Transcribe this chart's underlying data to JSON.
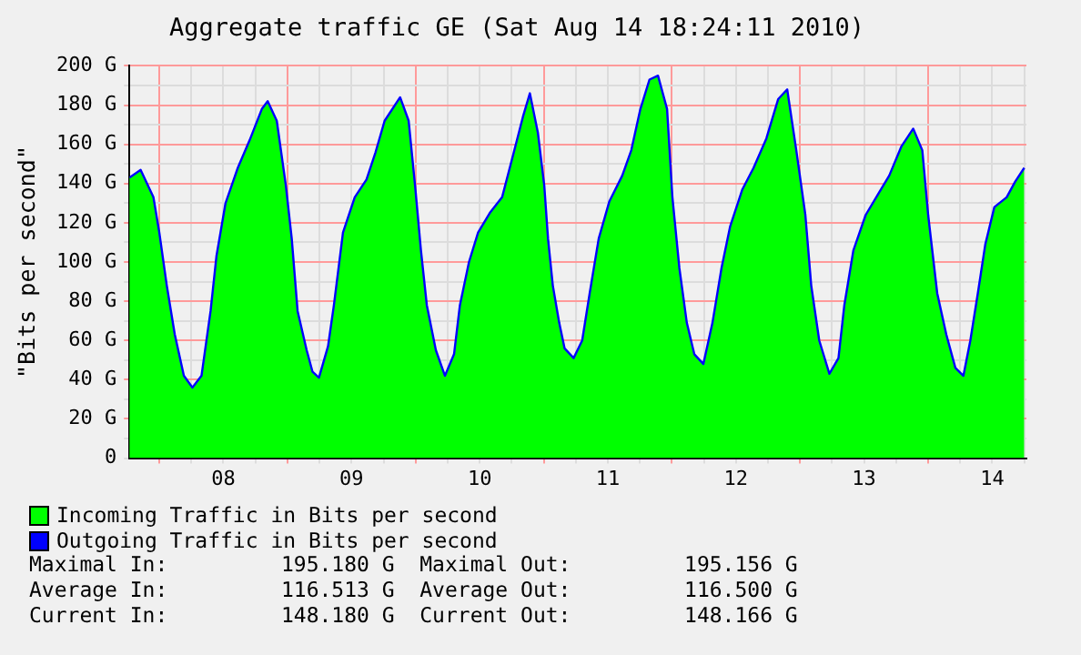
{
  "chart_data": {
    "type": "area",
    "title": "Aggregate traffic GE (Sat Aug 14 18:24:11 2010)",
    "ylabel": "\"Bits per second\"",
    "x": [
      "2010-08-07T18:24",
      "2010-08-07T20:30",
      "2010-08-07T22:54",
      "2010-08-08T00:00",
      "2010-08-08T01:24",
      "2010-08-08T02:54",
      "2010-08-08T04:36",
      "2010-08-08T06:12",
      "2010-08-08T07:54",
      "2010-08-08T09:36",
      "2010-08-08T10:42",
      "2010-08-08T12:24",
      "2010-08-08T14:42",
      "2010-08-08T16:54",
      "2010-08-08T19:12",
      "2010-08-08T20:18",
      "2010-08-08T22:00",
      "2010-08-08T23:42",
      "2010-08-09T00:48",
      "2010-08-09T01:54",
      "2010-08-09T03:36",
      "2010-08-09T04:42",
      "2010-08-09T05:54",
      "2010-08-09T07:36",
      "2010-08-09T08:42",
      "2010-08-09T10:24",
      "2010-08-09T12:36",
      "2010-08-09T14:48",
      "2010-08-09T16:30",
      "2010-08-09T18:12",
      "2010-08-09T21:06",
      "2010-08-09T22:42",
      "2010-08-09T23:54",
      "2010-08-10T01:00",
      "2010-08-10T02:06",
      "2010-08-10T03:48",
      "2010-08-10T05:30",
      "2010-08-10T07:12",
      "2010-08-10T08:18",
      "2010-08-10T10:00",
      "2010-08-10T11:42",
      "2010-08-10T13:54",
      "2010-08-10T16:12",
      "2010-08-10T18:24",
      "2010-08-10T20:06",
      "2010-08-10T21:24",
      "2010-08-10T22:54",
      "2010-08-11T00:06",
      "2010-08-11T00:48",
      "2010-08-11T01:42",
      "2010-08-11T02:54",
      "2010-08-11T03:54",
      "2010-08-11T05:36",
      "2010-08-11T07:12",
      "2010-08-11T08:36",
      "2010-08-11T10:18",
      "2010-08-11T12:18",
      "2010-08-11T14:42",
      "2010-08-11T16:24",
      "2010-08-11T18:06",
      "2010-08-11T19:48",
      "2010-08-11T21:24",
      "2010-08-11T23:06",
      "2010-08-12T00:06",
      "2010-08-12T01:24",
      "2010-08-12T02:48",
      "2010-08-12T04:12",
      "2010-08-12T05:54",
      "2010-08-12T07:36",
      "2010-08-12T09:18",
      "2010-08-12T10:54",
      "2010-08-12T13:12",
      "2010-08-12T15:18",
      "2010-08-12T17:42",
      "2010-08-12T19:54",
      "2010-08-12T21:36",
      "2010-08-12T23:18",
      "2010-08-13T01:00",
      "2010-08-13T02:06",
      "2010-08-13T03:36",
      "2010-08-13T05:30",
      "2010-08-13T07:12",
      "2010-08-13T08:18",
      "2010-08-13T10:00",
      "2010-08-13T12:18",
      "2010-08-13T14:30",
      "2010-08-13T16:42",
      "2010-08-13T19:00",
      "2010-08-13T21:12",
      "2010-08-13T22:54",
      "2010-08-14T00:00",
      "2010-08-14T01:42",
      "2010-08-14T03:24",
      "2010-08-14T05:06",
      "2010-08-14T06:36",
      "2010-08-14T07:54",
      "2010-08-14T09:18",
      "2010-08-14T10:42",
      "2010-08-14T12:24",
      "2010-08-14T14:42",
      "2010-08-14T16:18",
      "2010-08-14T18:00"
    ],
    "series": [
      {
        "name": "Incoming Traffic in Bits per second",
        "color": "#00ff00",
        "values": [
          143,
          147,
          133,
          115,
          88,
          63,
          42,
          36,
          42,
          75,
          103,
          130,
          148,
          162,
          178,
          182,
          172,
          139,
          112,
          75,
          55,
          44,
          41,
          57,
          78,
          115,
          133,
          142,
          156,
          172,
          184,
          172,
          139,
          106,
          78,
          55,
          42,
          53,
          78,
          100,
          115,
          125,
          133,
          156,
          174,
          186,
          166,
          139,
          112,
          88,
          69,
          56,
          51,
          60,
          84,
          112,
          131,
          144,
          157,
          178,
          193,
          195,
          178,
          133,
          97,
          69,
          53,
          48,
          69,
          97,
          118,
          137,
          148,
          163,
          183,
          188,
          157,
          124,
          88,
          60,
          43,
          51,
          78,
          106,
          124,
          134,
          144,
          159,
          168,
          157,
          124,
          84,
          63,
          46,
          42,
          60,
          84,
          109,
          128,
          133,
          141,
          148
        ]
      },
      {
        "name": "Outgoing Traffic in Bits per second",
        "type": "line",
        "color": "#0000ff",
        "values": [
          143,
          147,
          133,
          115,
          88,
          63,
          42,
          36,
          42,
          75,
          103,
          130,
          148,
          162,
          178,
          182,
          172,
          139,
          112,
          75,
          55,
          44,
          41,
          57,
          78,
          115,
          133,
          142,
          156,
          172,
          184,
          172,
          139,
          106,
          78,
          55,
          42,
          53,
          78,
          100,
          115,
          125,
          133,
          156,
          174,
          186,
          166,
          139,
          112,
          88,
          69,
          56,
          51,
          60,
          84,
          112,
          131,
          144,
          157,
          178,
          193,
          195,
          178,
          133,
          97,
          69,
          53,
          48,
          69,
          97,
          118,
          137,
          148,
          163,
          183,
          188,
          157,
          124,
          88,
          60,
          43,
          51,
          78,
          106,
          124,
          134,
          144,
          159,
          168,
          157,
          124,
          84,
          63,
          46,
          42,
          60,
          84,
          109,
          128,
          133,
          141,
          148
        ]
      }
    ],
    "xlim": [
      "2010-08-07T18:24",
      "2010-08-14T18:24"
    ],
    "xticks": [
      {
        "value": "2010-08-08T00:00",
        "label": null
      },
      {
        "value": "2010-08-08T06:00",
        "label": null
      },
      {
        "value": "2010-08-08T12:00",
        "label": "08"
      },
      {
        "value": "2010-08-08T18:00",
        "label": null
      },
      {
        "value": "2010-08-09T00:00",
        "label": null
      },
      {
        "value": "2010-08-09T06:00",
        "label": null
      },
      {
        "value": "2010-08-09T12:00",
        "label": "09"
      },
      {
        "value": "2010-08-09T18:00",
        "label": null
      },
      {
        "value": "2010-08-10T00:00",
        "label": null
      },
      {
        "value": "2010-08-10T06:00",
        "label": null
      },
      {
        "value": "2010-08-10T12:00",
        "label": "10"
      },
      {
        "value": "2010-08-10T18:00",
        "label": null
      },
      {
        "value": "2010-08-11T00:00",
        "label": null
      },
      {
        "value": "2010-08-11T06:00",
        "label": null
      },
      {
        "value": "2010-08-11T12:00",
        "label": "11"
      },
      {
        "value": "2010-08-11T18:00",
        "label": null
      },
      {
        "value": "2010-08-12T00:00",
        "label": null
      },
      {
        "value": "2010-08-12T06:00",
        "label": null
      },
      {
        "value": "2010-08-12T12:00",
        "label": "12"
      },
      {
        "value": "2010-08-12T18:00",
        "label": null
      },
      {
        "value": "2010-08-13T00:00",
        "label": null
      },
      {
        "value": "2010-08-13T06:00",
        "label": null
      },
      {
        "value": "2010-08-13T12:00",
        "label": "13"
      },
      {
        "value": "2010-08-13T18:00",
        "label": null
      },
      {
        "value": "2010-08-14T00:00",
        "label": null
      },
      {
        "value": "2010-08-14T06:00",
        "label": null
      },
      {
        "value": "2010-08-14T12:00",
        "label": "14"
      },
      {
        "value": "2010-08-14T18:00",
        "label": null
      }
    ],
    "ylim": [
      0,
      200
    ],
    "yticks": [
      0,
      {
        "value": 10,
        "label": null
      },
      {
        "value": 20,
        "label": "20 G"
      },
      {
        "value": 30,
        "label": null
      },
      {
        "value": 40,
        "label": "40 G"
      },
      {
        "value": 50,
        "label": null
      },
      {
        "value": 60,
        "label": "60 G"
      },
      {
        "value": 70,
        "label": null
      },
      {
        "value": 80,
        "label": "80 G"
      },
      {
        "value": 90,
        "label": null
      },
      {
        "value": 100,
        "label": "100 G"
      },
      {
        "value": 110,
        "label": null
      },
      {
        "value": 120,
        "label": "120 G"
      },
      {
        "value": 130,
        "label": null
      },
      {
        "value": 140,
        "label": "140 G"
      },
      {
        "value": 150,
        "label": null
      },
      {
        "value": 160,
        "label": "160 G"
      },
      {
        "value": 170,
        "label": null
      },
      {
        "value": 180,
        "label": "180 G"
      },
      {
        "value": 190,
        "label": null
      },
      {
        "value": 200,
        "label": "200 G"
      }
    ],
    "grid": true,
    "legend": "bottom",
    "marker": "none",
    "annotations": [
      "Maximal In:         195.180 G  Maximal Out:         195.156 G",
      "Average In:         116.513 G  Average Out:         116.500 G",
      "Current In:         148.180 G  Current Out:         148.166 G"
    ]
  }
}
